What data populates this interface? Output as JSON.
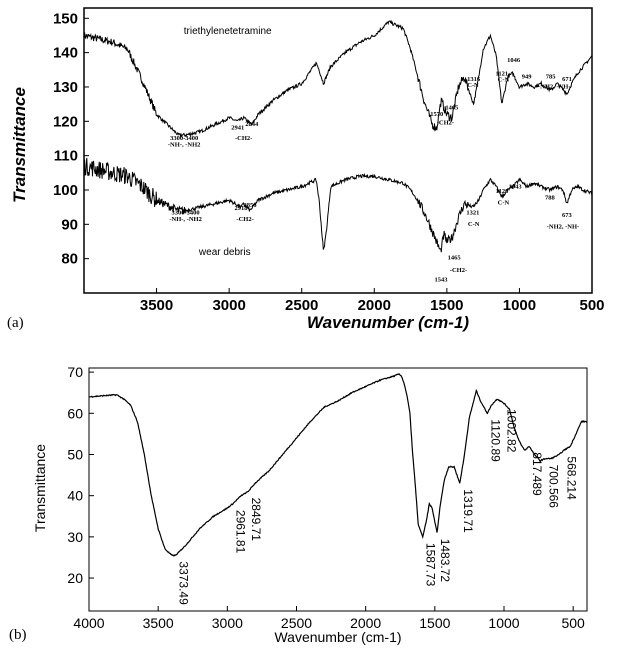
{
  "figure": {
    "panel_a_label": "(a)",
    "panel_b_label": "(b)"
  },
  "chart_data": [
    {
      "type": "line",
      "panel": "(a)",
      "title": "",
      "xlabel": "Wavenumber (cm-1)",
      "ylabel": "Transmittance",
      "xlim": [
        4000,
        500
      ],
      "ylim": [
        70,
        153
      ],
      "x_ticks": [
        3500,
        3000,
        2500,
        2000,
        1500,
        1000,
        500
      ],
      "y_ticks": [
        80,
        90,
        100,
        110,
        120,
        130,
        140,
        150
      ],
      "series": [
        {
          "name": "triethylenetetramine",
          "x": [
            4000,
            3900,
            3800,
            3700,
            3600,
            3500,
            3400,
            3350,
            3300,
            3200,
            3100,
            3000,
            2941,
            2900,
            2844,
            2800,
            2700,
            2600,
            2500,
            2450,
            2400,
            2380,
            2350,
            2330,
            2300,
            2200,
            2100,
            2000,
            1900,
            1800,
            1750,
            1700,
            1650,
            1600,
            1570,
            1540,
            1500,
            1465,
            1420,
            1380,
            1340,
            1316,
            1280,
            1250,
            1200,
            1160,
            1121,
            1080,
            1046,
            1000,
            949,
            900,
            850,
            785,
            740,
            671,
            640,
            600,
            560,
            500
          ],
          "values": [
            145,
            144,
            143,
            141,
            132,
            122,
            118,
            116,
            116,
            117,
            119,
            121,
            120,
            121,
            119,
            122,
            126,
            129,
            131,
            134,
            137,
            135,
            131,
            133,
            136,
            140,
            143,
            145,
            149,
            147,
            141,
            133,
            125,
            119,
            118,
            126,
            122,
            121,
            130,
            133,
            128,
            125,
            133,
            141,
            145,
            139,
            125,
            133,
            134,
            130,
            131,
            130,
            131,
            129,
            131,
            128,
            131,
            134,
            136,
            139
          ]
        },
        {
          "name": "wear debris",
          "x": [
            4000,
            3900,
            3800,
            3700,
            3600,
            3500,
            3400,
            3350,
            3300,
            3200,
            3100,
            3000,
            2918,
            2900,
            2856,
            2800,
            2700,
            2600,
            2500,
            2450,
            2400,
            2380,
            2350,
            2330,
            2300,
            2200,
            2100,
            2000,
            1900,
            1800,
            1750,
            1700,
            1650,
            1600,
            1543,
            1520,
            1500,
            1465,
            1420,
            1380,
            1321,
            1280,
            1250,
            1200,
            1160,
            1120,
            1080,
            1043,
            1000,
            950,
            900,
            850,
            788,
            740,
            700,
            673,
            640,
            600,
            560,
            500
          ],
          "values": [
            107,
            106,
            105,
            104,
            101,
            97,
            95,
            94,
            94,
            95,
            96,
            97,
            95,
            96,
            94,
            97,
            99,
            100,
            101,
            102,
            103,
            97,
            82,
            88,
            101,
            103,
            104,
            104,
            103,
            102,
            100,
            97,
            93,
            88,
            82,
            87,
            85,
            86,
            92,
            96,
            95,
            97,
            100,
            103,
            101,
            98,
            100,
            101,
            103,
            101,
            102,
            101,
            100,
            101,
            100,
            96,
            100,
            101,
            100,
            99
          ]
        }
      ],
      "annotations": [
        {
          "text": "triethylenetetramine",
          "x": 3010,
          "y": 145.5
        },
        {
          "text": "3300-3400",
          "x": 3310,
          "y": 114.5
        },
        {
          "text": "-NH-, -NH2",
          "x": 3310,
          "y": 112.6
        },
        {
          "text": "2941",
          "x": 2941,
          "y": 117.6
        },
        {
          "text": "2844",
          "x": 2844,
          "y": 118.6
        },
        {
          "text": "-CH2-",
          "x": 2900,
          "y": 114.5
        },
        {
          "text": "1570",
          "x": 1570,
          "y": 121.5
        },
        {
          "text": "1465",
          "x": 1465,
          "y": 123.5
        },
        {
          "text": "-CH2-",
          "x": 1510,
          "y": 119.0
        },
        {
          "text": "1316",
          "x": 1316,
          "y": 131.8
        },
        {
          "text": "C-N",
          "x": 1320,
          "y": 130.0
        },
        {
          "text": "1121",
          "x": 1121,
          "y": 133.4
        },
        {
          "text": "C-N",
          "x": 1110,
          "y": 131.6
        },
        {
          "text": "1046",
          "x": 1040,
          "y": 137.3
        },
        {
          "text": "949",
          "x": 950,
          "y": 132.5
        },
        {
          "text": "785",
          "x": 785,
          "y": 132.5
        },
        {
          "text": "671",
          "x": 672,
          "y": 131.7
        },
        {
          "text": "-NH2, -NH-",
          "x": 760,
          "y": 129.6
        },
        {
          "text": "3300-3400",
          "x": 3300,
          "y": 92.9
        },
        {
          "text": "-NH-, -NH2",
          "x": 3300,
          "y": 91.0
        },
        {
          "text": "2918",
          "x": 2918,
          "y": 94.1
        },
        {
          "text": "2856",
          "x": 2856,
          "y": 95.1
        },
        {
          "text": "-CH2-",
          "x": 2890,
          "y": 90.9
        },
        {
          "text": "wear debris",
          "x": 3030,
          "y": 81.0
        },
        {
          "text": "1321",
          "x": 1321,
          "y": 92.9
        },
        {
          "text": "C-N",
          "x": 1315,
          "y": 89.5
        },
        {
          "text": "1465",
          "x": 1450,
          "y": 79.8
        },
        {
          "text": "-CH2-",
          "x": 1420,
          "y": 76.1
        },
        {
          "text": "1543",
          "x": 1540,
          "y": 73.3
        },
        {
          "text": "1120",
          "x": 1120,
          "y": 99.1
        },
        {
          "text": "C-N",
          "x": 1110,
          "y": 95.8
        },
        {
          "text": "1043",
          "x": 1030,
          "y": 100.5
        },
        {
          "text": "788",
          "x": 790,
          "y": 97.3
        },
        {
          "text": "673",
          "x": 673,
          "y": 92.2
        },
        {
          "text": "-NH2, -NH-",
          "x": 700,
          "y": 88.8
        }
      ]
    },
    {
      "type": "line",
      "panel": "(b)",
      "title": "",
      "xlabel": "Wavenumber (cm-1)",
      "ylabel": "Transmittance",
      "xlim": [
        4000,
        400
      ],
      "ylim": [
        12,
        71
      ],
      "x_ticks": [
        4000,
        3500,
        3000,
        2500,
        2000,
        1500,
        1000,
        500
      ],
      "y_ticks": [
        20,
        30,
        40,
        50,
        60,
        70
      ],
      "series": [
        {
          "name": "Transmittance",
          "x": [
            4000,
            3800,
            3750,
            3700,
            3650,
            3600,
            3550,
            3500,
            3450,
            3400,
            3373.49,
            3300,
            3200,
            3100,
            3000,
            2961.81,
            2900,
            2849.71,
            2800,
            2700,
            2600,
            2500,
            2400,
            2300,
            2200,
            2100,
            2000,
            1900,
            1800,
            1760,
            1740,
            1720,
            1700,
            1680,
            1660,
            1640,
            1620,
            1587.73,
            1560,
            1540,
            1520,
            1483.72,
            1460,
            1430,
            1400,
            1360,
            1319.71,
            1290,
            1250,
            1200,
            1170,
            1120.89,
            1090,
            1050,
            1002.82,
            960,
            930,
            900,
            870,
            850,
            817.489,
            780,
            740,
            700.566,
            660,
            600,
            568.214,
            520,
            480,
            440
          ],
          "values": [
            64,
            64.5,
            63.5,
            62,
            58,
            50,
            40,
            32,
            27,
            25.5,
            25.5,
            28,
            32,
            35,
            37,
            38,
            40,
            41,
            43,
            46,
            50,
            54,
            58,
            61.5,
            63,
            65,
            66.5,
            68,
            69,
            69.5,
            69,
            67,
            64,
            60,
            50,
            42,
            33,
            30,
            34,
            38,
            37,
            31,
            38,
            44,
            47,
            47,
            43,
            49,
            59,
            65.5,
            63,
            60,
            62,
            63.5,
            62.5,
            61,
            57,
            54,
            52,
            51,
            52,
            50,
            48.5,
            49,
            49,
            50,
            51,
            52,
            55,
            58
          ]
        }
      ],
      "annotations": [
        {
          "text": "3373.49",
          "x": 3373.49
        },
        {
          "text": "2961.81",
          "x": 2961.81
        },
        {
          "text": "2849.71",
          "x": 2849.71
        },
        {
          "text": "1587.73",
          "x": 1587.73
        },
        {
          "text": "1483.72",
          "x": 1483.72
        },
        {
          "text": "1319.71",
          "x": 1319.71
        },
        {
          "text": "1120.89",
          "x": 1120.89
        },
        {
          "text": "1002.82",
          "x": 1002.82
        },
        {
          "text": "817.489",
          "x": 817.489
        },
        {
          "text": "700.566",
          "x": 700.566
        },
        {
          "text": "568.214",
          "x": 568.214
        }
      ]
    }
  ]
}
